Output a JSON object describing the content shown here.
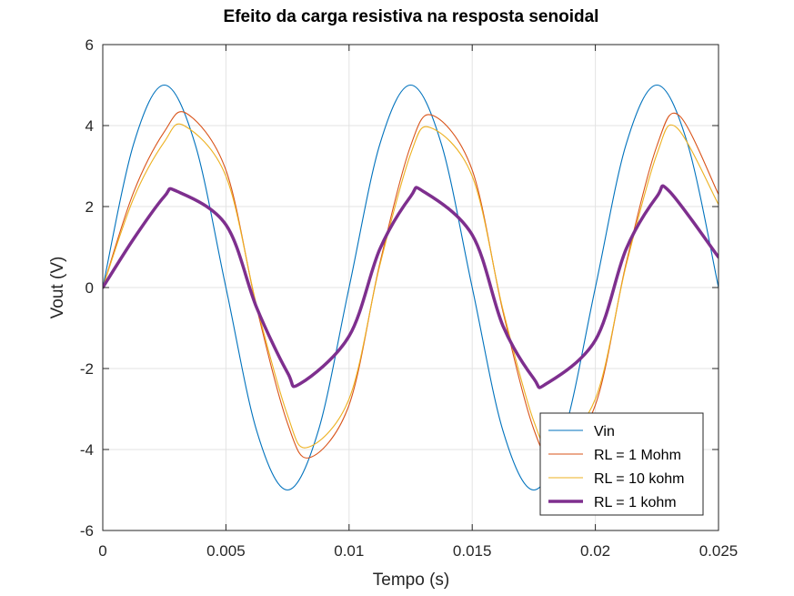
{
  "chart_data": {
    "type": "line",
    "title": "Efeito da carga resistiva na resposta senoidal",
    "xlabel": "Tempo (s)",
    "ylabel": "Vout (V)",
    "xlim": [
      0,
      0.025
    ],
    "ylim": [
      -6,
      6
    ],
    "xticks": [
      0,
      0.005,
      0.01,
      0.015,
      0.02,
      0.025
    ],
    "xtick_labels": [
      "0",
      "0.005",
      "0.01",
      "0.015",
      "0.02",
      "0.025"
    ],
    "yticks": [
      -6,
      -4,
      -2,
      0,
      2,
      4,
      6
    ],
    "ytick_labels": [
      "-6",
      "-4",
      "-2",
      "0",
      "2",
      "4",
      "6"
    ],
    "grid": true,
    "legend_position": "bottom-right",
    "series": [
      {
        "name": "Vin",
        "color": "#0072bd",
        "line_width": "thin",
        "x": [
          0,
          0.00125,
          0.0025,
          0.00375,
          0.005,
          0.00625,
          0.0075,
          0.00875,
          0.01,
          0.01125,
          0.0125,
          0.01375,
          0.015,
          0.01625,
          0.0175,
          0.01875,
          0.02,
          0.02125,
          0.0225,
          0.02375,
          0.025
        ],
        "y": [
          0,
          3.54,
          5.0,
          3.54,
          0,
          -3.54,
          -5.0,
          -3.54,
          0,
          3.54,
          5.0,
          3.54,
          0,
          -3.54,
          -5.0,
          -3.54,
          0,
          3.54,
          5.0,
          3.54,
          0
        ]
      },
      {
        "name": "RL = 1 Mohm",
        "color": "#d95319",
        "line_width": "thin",
        "x": [
          0,
          0.00125,
          0.0025,
          0.0034,
          0.005,
          0.00625,
          0.0075,
          0.0084,
          0.01,
          0.01125,
          0.0125,
          0.0134,
          0.015,
          0.01625,
          0.0175,
          0.0184,
          0.02,
          0.02125,
          0.0225,
          0.0234,
          0.025
        ],
        "y": [
          0,
          2.35,
          3.85,
          4.3,
          2.9,
          -0.5,
          -3.35,
          -4.2,
          -2.9,
          0.6,
          3.5,
          4.25,
          2.9,
          -0.6,
          -3.5,
          -4.2,
          -2.9,
          0.6,
          3.5,
          4.25,
          2.3
        ]
      },
      {
        "name": "RL = 10 kohm",
        "color": "#edb120",
        "line_width": "thin",
        "x": [
          0,
          0.00125,
          0.0025,
          0.0033,
          0.005,
          0.00625,
          0.0075,
          0.0083,
          0.01,
          0.01125,
          0.0125,
          0.0133,
          0.015,
          0.01625,
          0.0175,
          0.0183,
          0.02,
          0.02125,
          0.0225,
          0.0233,
          0.025
        ],
        "y": [
          0,
          2.2,
          3.6,
          4.0,
          2.75,
          -0.45,
          -3.15,
          -3.95,
          -2.75,
          0.55,
          3.3,
          3.95,
          2.75,
          -0.55,
          -3.3,
          -3.95,
          -2.75,
          0.55,
          3.3,
          3.95,
          2.05
        ]
      },
      {
        "name": "RL = 1 kohm",
        "color": "#7e2f8e",
        "line_width": "thick",
        "x": [
          0,
          0.00125,
          0.0025,
          0.003,
          0.005,
          0.00625,
          0.0075,
          0.008,
          0.01,
          0.01125,
          0.0125,
          0.013,
          0.015,
          0.01625,
          0.0175,
          0.018,
          0.02,
          0.02125,
          0.0225,
          0.023,
          0.025
        ],
        "y": [
          0,
          1.2,
          2.25,
          2.38,
          1.55,
          -0.5,
          -2.1,
          -2.38,
          -1.2,
          0.95,
          2.25,
          2.38,
          1.3,
          -0.95,
          -2.25,
          -2.38,
          -1.3,
          0.95,
          2.25,
          2.38,
          0.75
        ]
      }
    ]
  }
}
